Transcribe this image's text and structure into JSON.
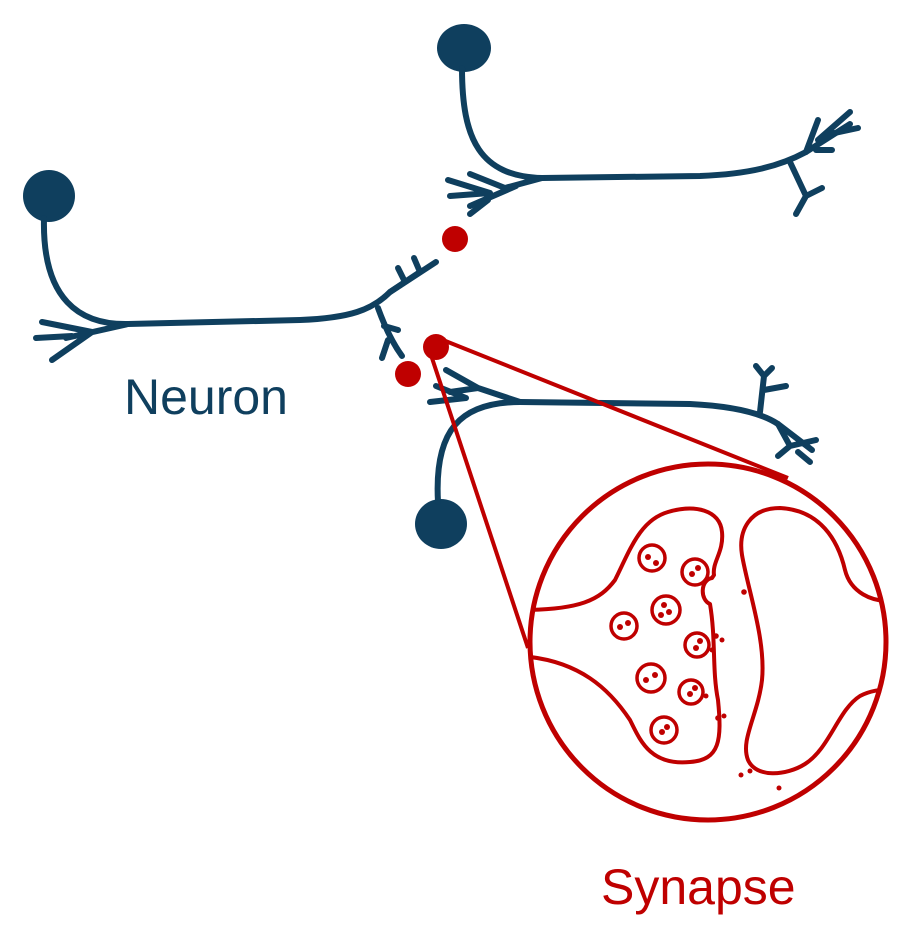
{
  "labels": {
    "neuron": "Neuron",
    "synapse": "Synapse"
  },
  "colors": {
    "neuron": "#0f3f5e",
    "synapse": "#bf0000",
    "background": "#ffffff"
  },
  "icons": {
    "soma": "soma-circle",
    "signal": "signal-dot",
    "vesicle": "vesicle-circle"
  }
}
